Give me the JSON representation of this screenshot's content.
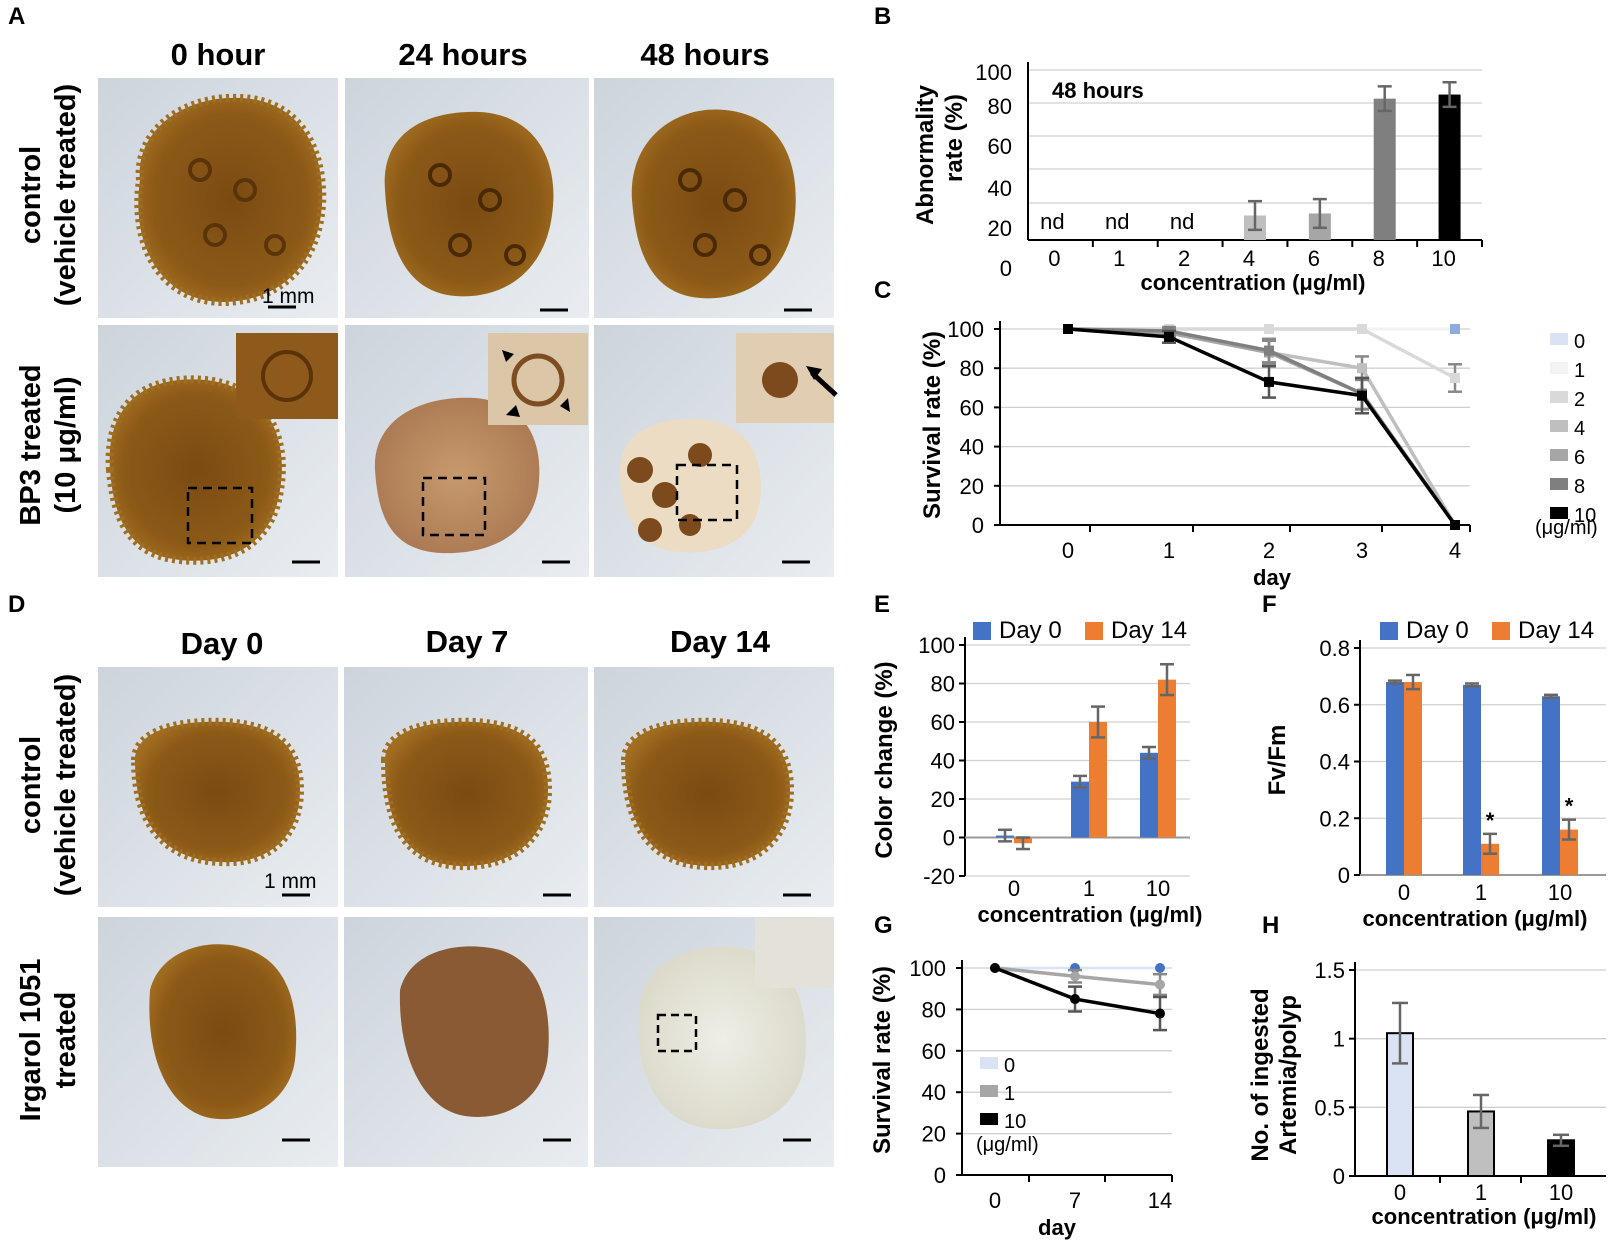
{
  "panels": {
    "A": {
      "letter": "A",
      "columns": [
        "0 hour",
        "24 hours",
        "48 hours"
      ],
      "row1": [
        "control",
        "(vehicle treated)"
      ],
      "row2": [
        "BP3 treated",
        "(10 μg/ml)"
      ],
      "scale": "1 mm"
    },
    "D": {
      "letter": "D",
      "columns": [
        "Day 0",
        "Day 7",
        "Day 14"
      ],
      "row1": [
        "control",
        "(vehicle treated)"
      ],
      "row2": [
        "Irgarol 1051",
        "treated"
      ],
      "scale": "1 mm"
    },
    "B": {
      "letter": "B"
    },
    "C": {
      "letter": "C"
    },
    "E": {
      "letter": "E"
    },
    "F": {
      "letter": "F"
    },
    "G": {
      "letter": "G"
    },
    "H": {
      "letter": "H"
    }
  },
  "colors": {
    "day0": "#4472c4",
    "day14": "#ed7d31",
    "c0": "#dae3f3",
    "c1": "#f2f2f2",
    "c2": "#d9d9d9",
    "c4": "#bfbfbf",
    "c6": "#a6a6a6",
    "c8": "#7f7f7f",
    "c10": "#000000"
  },
  "chart_data": [
    {
      "panel": "B",
      "type": "bar",
      "title": "48 hours",
      "categories": [
        "0",
        "1",
        "2",
        "4",
        "6",
        "8",
        "10"
      ],
      "values": [
        null,
        null,
        null,
        30,
        31,
        87,
        89
      ],
      "errors": [
        null,
        null,
        null,
        7,
        7,
        6,
        6
      ],
      "labels": [
        "nd",
        "nd",
        "nd",
        "",
        "",
        "",
        ""
      ],
      "xlabel": "concentration (μg/ml)",
      "ylabel": [
        "Abnormality",
        "rate (%)"
      ],
      "yticks": [
        "0",
        "20",
        "40",
        "60",
        "80",
        "100"
      ],
      "ylim": [
        0,
        100
      ]
    },
    {
      "panel": "C",
      "type": "line",
      "x": [
        "0",
        "1",
        "2",
        "3",
        "4"
      ],
      "series": [
        {
          "name": "0",
          "values": [
            100,
            100,
            100,
            100,
            100
          ],
          "errors": [
            0,
            0,
            0,
            0,
            0
          ]
        },
        {
          "name": "1",
          "values": [
            100,
            100,
            100,
            100,
            100
          ],
          "errors": [
            0,
            0,
            0,
            0,
            0
          ]
        },
        {
          "name": "2",
          "values": [
            100,
            100,
            100,
            100,
            75
          ],
          "errors": [
            0,
            0,
            0,
            0,
            7
          ]
        },
        {
          "name": "4",
          "values": [
            100,
            98,
            88,
            80,
            0
          ],
          "errors": [
            0,
            2,
            6,
            6,
            0
          ]
        },
        {
          "name": "6",
          "values": [
            100,
            98,
            88,
            67,
            0
          ],
          "errors": [
            0,
            2,
            6,
            8,
            0
          ]
        },
        {
          "name": "8",
          "values": [
            100,
            99,
            89,
            67,
            0
          ],
          "errors": [
            0,
            2,
            6,
            8,
            0
          ]
        },
        {
          "name": "10",
          "values": [
            100,
            96,
            73,
            66,
            0
          ],
          "errors": [
            0,
            3,
            8,
            9,
            0
          ]
        }
      ],
      "legend_unit": "(μg/ml)",
      "xlabel": "day",
      "ylabel": "Survival rate (%)",
      "yticks": [
        "0",
        "20",
        "40",
        "60",
        "80",
        "100"
      ],
      "ylim": [
        0,
        100
      ]
    },
    {
      "panel": "E",
      "type": "bar",
      "categories": [
        "0",
        "1",
        "10"
      ],
      "series": [
        {
          "name": "Day 0",
          "values": [
            1,
            29,
            44
          ],
          "errors": [
            3,
            3,
            3
          ]
        },
        {
          "name": "Day 14",
          "values": [
            -3,
            60,
            82
          ],
          "errors": [
            3,
            8,
            8
          ]
        }
      ],
      "xlabel": "concentration (μg/ml)",
      "ylabel": "Color change (%)",
      "yticks": [
        "-20",
        "0",
        "20",
        "40",
        "60",
        "80",
        "100"
      ],
      "ylim": [
        -20,
        100
      ]
    },
    {
      "panel": "F",
      "type": "bar",
      "categories": [
        "0",
        "1",
        "10"
      ],
      "series": [
        {
          "name": "Day 0",
          "values": [
            0.68,
            0.67,
            0.63
          ],
          "errors": [
            0.005,
            0.005,
            0.005
          ]
        },
        {
          "name": "Day 14",
          "values": [
            0.68,
            0.11,
            0.16
          ],
          "errors": [
            0.025,
            0.035,
            0.035
          ]
        }
      ],
      "annotations": [
        "",
        "*",
        "*"
      ],
      "xlabel": "concentration (μg/ml)",
      "ylabel": "Fv/Fm",
      "yticks": [
        "0",
        "0.2",
        "0.4",
        "0.6",
        "0.8"
      ],
      "ylim": [
        0,
        0.8
      ]
    },
    {
      "panel": "G",
      "type": "line",
      "x": [
        "0",
        "7",
        "14"
      ],
      "series": [
        {
          "name": "0",
          "values": [
            100,
            100,
            100
          ],
          "errors": [
            0,
            0,
            0
          ]
        },
        {
          "name": "1",
          "values": [
            100,
            96,
            92
          ],
          "errors": [
            0,
            3,
            5
          ]
        },
        {
          "name": "10",
          "values": [
            100,
            85,
            78
          ],
          "errors": [
            0,
            6,
            8
          ]
        }
      ],
      "legend_unit": "(μg/ml)",
      "xlabel": "day",
      "ylabel": "Survival rate (%)",
      "yticks": [
        "0",
        "20",
        "40",
        "60",
        "80",
        "100"
      ],
      "ylim": [
        0,
        100
      ]
    },
    {
      "panel": "H",
      "type": "bar",
      "categories": [
        "0",
        "1",
        "10"
      ],
      "values": [
        1.04,
        0.47,
        0.26
      ],
      "errors": [
        0.22,
        0.12,
        0.04
      ],
      "xlabel": "concentration (μg/ml)",
      "ylabel": [
        "No. of ingested",
        "Artemia/polyp"
      ],
      "yticks": [
        "0",
        "0.5",
        "1",
        "1.5"
      ],
      "ylim": [
        0,
        1.5
      ]
    }
  ]
}
